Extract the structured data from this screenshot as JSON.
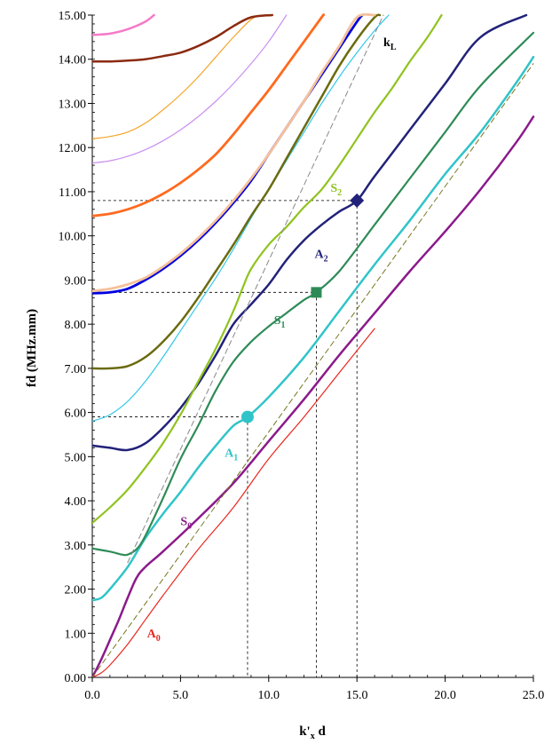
{
  "chart_data": {
    "type": "line",
    "xlabel": "k'x d",
    "xlabel_main": "k'",
    "xlabel_sub": "x",
    "xlabel_tail": " d",
    "ylabel": "fd (MHz.mm)",
    "xlim": [
      0,
      25
    ],
    "ylim": [
      0,
      15
    ],
    "x_ticks": [
      0,
      5,
      10,
      15,
      20,
      25
    ],
    "x_tick_labels": [
      "0.0",
      "5.0",
      "10.0",
      "15.0",
      "20.0",
      "25.0"
    ],
    "y_ticks": [
      0,
      1,
      2,
      3,
      4,
      5,
      6,
      7,
      8,
      9,
      10,
      11,
      12,
      13,
      14,
      15
    ],
    "y_tick_labels": [
      "0.00",
      "1.00",
      "2.00",
      "3.00",
      "4.00",
      "5.00",
      "6.00",
      "7.00",
      "8.00",
      "9.00",
      "10.00",
      "11.00",
      "12.00",
      "13.00",
      "14.00",
      "15.00"
    ],
    "grid": false,
    "series": [
      {
        "name": "A0",
        "color": "#e8281e",
        "width": 1.2,
        "dash": "",
        "points": [
          [
            0,
            0
          ],
          [
            0.5,
            0.1
          ],
          [
            1,
            0.28
          ],
          [
            2,
            0.75
          ],
          [
            3,
            1.3
          ],
          [
            4,
            1.85
          ],
          [
            6,
            2.9
          ],
          [
            8,
            3.85
          ],
          [
            10,
            4.95
          ],
          [
            12,
            5.9
          ],
          [
            14,
            6.9
          ],
          [
            16,
            7.9
          ]
        ]
      },
      {
        "name": "S0",
        "color": "#8b1a8b",
        "width": 2.5,
        "dash": "",
        "points": [
          [
            0,
            0
          ],
          [
            0.5,
            0.4
          ],
          [
            1,
            0.85
          ],
          [
            1.5,
            1.3
          ],
          [
            2,
            1.8
          ],
          [
            2.5,
            2.25
          ],
          [
            3,
            2.5
          ],
          [
            4,
            2.85
          ],
          [
            6,
            3.6
          ],
          [
            8,
            4.4
          ],
          [
            10,
            5.35
          ],
          [
            12,
            6.3
          ],
          [
            14,
            7.3
          ],
          [
            16,
            8.25
          ],
          [
            18,
            9.2
          ],
          [
            20,
            10.1
          ],
          [
            22,
            11.05
          ],
          [
            24,
            12.1
          ],
          [
            25,
            12.7
          ]
        ]
      },
      {
        "name": "A1",
        "color": "#30c4c8",
        "width": 2.5,
        "dash": "",
        "points": [
          [
            0,
            1.75
          ],
          [
            0.5,
            1.8
          ],
          [
            1,
            2.0
          ],
          [
            2,
            2.5
          ],
          [
            3,
            3.15
          ],
          [
            4,
            3.7
          ],
          [
            5,
            4.2
          ],
          [
            6,
            4.75
          ],
          [
            7,
            5.25
          ],
          [
            8,
            5.7
          ],
          [
            8.8,
            5.9
          ],
          [
            10,
            6.35
          ],
          [
            12,
            7.25
          ],
          [
            14,
            8.3
          ],
          [
            16,
            9.35
          ],
          [
            18,
            10.35
          ],
          [
            20,
            11.4
          ],
          [
            22,
            12.35
          ],
          [
            24,
            13.45
          ],
          [
            25,
            14.05
          ]
        ]
      },
      {
        "name": "S1",
        "color": "#2e8b57",
        "width": 2.2,
        "dash": "",
        "points": [
          [
            0,
            2.92
          ],
          [
            1,
            2.85
          ],
          [
            1.7,
            2.78
          ],
          [
            2,
            2.78
          ],
          [
            2.5,
            2.9
          ],
          [
            3,
            3.2
          ],
          [
            4,
            4.05
          ],
          [
            5,
            4.95
          ],
          [
            6,
            5.7
          ],
          [
            7,
            6.5
          ],
          [
            8,
            7.15
          ],
          [
            9,
            7.6
          ],
          [
            10,
            7.95
          ],
          [
            11,
            8.25
          ],
          [
            12,
            8.55
          ],
          [
            12.7,
            8.72
          ],
          [
            14,
            9.2
          ],
          [
            16,
            10.25
          ],
          [
            18,
            11.3
          ],
          [
            20,
            12.35
          ],
          [
            22,
            13.4
          ],
          [
            25,
            14.6
          ]
        ]
      },
      {
        "name": "A2",
        "color": "#22227a",
        "width": 2.5,
        "dash": "",
        "points": [
          [
            0,
            5.25
          ],
          [
            1,
            5.2
          ],
          [
            2,
            5.15
          ],
          [
            3,
            5.3
          ],
          [
            4,
            5.65
          ],
          [
            5,
            6.1
          ],
          [
            6,
            6.65
          ],
          [
            7,
            7.3
          ],
          [
            8,
            8.0
          ],
          [
            9,
            8.45
          ],
          [
            10,
            8.9
          ],
          [
            11,
            9.45
          ],
          [
            12,
            9.9
          ],
          [
            13,
            10.25
          ],
          [
            14,
            10.55
          ],
          [
            15,
            10.8
          ],
          [
            16,
            11.35
          ],
          [
            18,
            12.4
          ],
          [
            20,
            13.45
          ],
          [
            22,
            14.5
          ],
          [
            24.6,
            15
          ]
        ]
      },
      {
        "name": "S2",
        "color": "#8fc31f",
        "width": 2.2,
        "dash": "",
        "points": [
          [
            0,
            3.5
          ],
          [
            1,
            3.85
          ],
          [
            2,
            4.25
          ],
          [
            3,
            4.75
          ],
          [
            4,
            5.3
          ],
          [
            5,
            5.95
          ],
          [
            6,
            6.7
          ],
          [
            7,
            7.45
          ],
          [
            8,
            8.3
          ],
          [
            8.5,
            8.8
          ],
          [
            9,
            9.25
          ],
          [
            10,
            9.8
          ],
          [
            11,
            10.2
          ],
          [
            12,
            10.65
          ],
          [
            13,
            11.05
          ],
          [
            14,
            11.6
          ],
          [
            15,
            12.2
          ],
          [
            16,
            12.8
          ],
          [
            17,
            13.35
          ],
          [
            18,
            13.95
          ],
          [
            19,
            14.5
          ],
          [
            19.8,
            15
          ]
        ]
      },
      {
        "name": "",
        "color": "#33c8e8",
        "width": 1.2,
        "dash": "",
        "points": [
          [
            0,
            5.8
          ],
          [
            1,
            5.95
          ],
          [
            2,
            6.25
          ],
          [
            3,
            6.7
          ],
          [
            4,
            7.25
          ],
          [
            5,
            7.85
          ],
          [
            6,
            8.45
          ],
          [
            7,
            9.05
          ],
          [
            8,
            9.7
          ],
          [
            9,
            10.4
          ],
          [
            10,
            11.05
          ],
          [
            11,
            11.7
          ],
          [
            12,
            12.35
          ],
          [
            13,
            13.0
          ],
          [
            14,
            13.6
          ],
          [
            15,
            14.15
          ],
          [
            16,
            14.65
          ],
          [
            16.8,
            15
          ]
        ]
      },
      {
        "name": "",
        "color": "#6b6b10",
        "width": 2.5,
        "dash": "",
        "points": [
          [
            0,
            7.0
          ],
          [
            1,
            7.0
          ],
          [
            2,
            7.05
          ],
          [
            3,
            7.25
          ],
          [
            4,
            7.6
          ],
          [
            5,
            8.05
          ],
          [
            6,
            8.6
          ],
          [
            7,
            9.2
          ],
          [
            8,
            9.8
          ],
          [
            9,
            10.45
          ],
          [
            10,
            11.05
          ],
          [
            11,
            11.75
          ],
          [
            12,
            12.45
          ],
          [
            13,
            13.15
          ],
          [
            14,
            13.85
          ],
          [
            15,
            14.45
          ],
          [
            16,
            14.95
          ],
          [
            16.3,
            15
          ]
        ]
      },
      {
        "name": "",
        "color": "#0000e0",
        "width": 2.8,
        "dash": "",
        "points": [
          [
            0,
            8.7
          ],
          [
            1,
            8.72
          ],
          [
            2,
            8.8
          ],
          [
            3,
            9.0
          ],
          [
            4,
            9.25
          ],
          [
            5,
            9.55
          ],
          [
            6,
            9.9
          ],
          [
            7,
            10.3
          ],
          [
            8,
            10.75
          ],
          [
            9,
            11.25
          ],
          [
            10,
            11.85
          ],
          [
            11,
            12.45
          ],
          [
            12,
            13.05
          ],
          [
            13,
            13.65
          ],
          [
            14,
            14.25
          ],
          [
            15,
            14.85
          ],
          [
            15.3,
            15
          ]
        ]
      },
      {
        "name": "",
        "color": "#f5c19a",
        "width": 2.8,
        "dash": "",
        "points": [
          [
            0,
            8.75
          ],
          [
            1,
            8.8
          ],
          [
            2,
            8.9
          ],
          [
            3,
            9.05
          ],
          [
            4,
            9.3
          ],
          [
            5,
            9.6
          ],
          [
            6,
            9.95
          ],
          [
            7,
            10.35
          ],
          [
            8,
            10.8
          ],
          [
            9,
            11.3
          ],
          [
            10,
            11.85
          ],
          [
            11,
            12.45
          ],
          [
            12,
            13.05
          ],
          [
            13,
            13.7
          ],
          [
            14,
            14.3
          ],
          [
            15,
            14.95
          ],
          [
            16,
            15
          ]
        ]
      },
      {
        "name": "",
        "color": "#ff6a1e",
        "width": 2.8,
        "dash": "",
        "points": [
          [
            0,
            10.45
          ],
          [
            1,
            10.5
          ],
          [
            2,
            10.6
          ],
          [
            3,
            10.75
          ],
          [
            4,
            10.95
          ],
          [
            5,
            11.2
          ],
          [
            6,
            11.5
          ],
          [
            7,
            11.85
          ],
          [
            8,
            12.3
          ],
          [
            9,
            12.8
          ],
          [
            10,
            13.3
          ],
          [
            11,
            13.85
          ],
          [
            12,
            14.4
          ],
          [
            13,
            14.95
          ],
          [
            13.1,
            15
          ]
        ]
      },
      {
        "name": "",
        "color": "#c98ff0",
        "width": 1.2,
        "dash": "",
        "points": [
          [
            0,
            11.65
          ],
          [
            1,
            11.7
          ],
          [
            2,
            11.8
          ],
          [
            3,
            11.95
          ],
          [
            4,
            12.15
          ],
          [
            5,
            12.4
          ],
          [
            6,
            12.7
          ],
          [
            7,
            13.05
          ],
          [
            8,
            13.45
          ],
          [
            9,
            13.9
          ],
          [
            10,
            14.4
          ],
          [
            11,
            15
          ]
        ]
      },
      {
        "name": "",
        "color": "#f4a428",
        "width": 1.2,
        "dash": "",
        "points": [
          [
            0,
            12.2
          ],
          [
            1,
            12.25
          ],
          [
            2,
            12.35
          ],
          [
            3,
            12.55
          ],
          [
            4,
            12.85
          ],
          [
            5,
            13.2
          ],
          [
            6,
            13.6
          ],
          [
            7,
            14.05
          ],
          [
            8,
            14.5
          ],
          [
            9,
            14.9
          ],
          [
            9.6,
            15
          ]
        ]
      },
      {
        "name": "",
        "color": "#8b2a10",
        "width": 2.5,
        "dash": "",
        "points": [
          [
            0,
            13.95
          ],
          [
            1,
            13.95
          ],
          [
            2,
            13.97
          ],
          [
            3,
            14.0
          ],
          [
            4,
            14.07
          ],
          [
            5,
            14.15
          ],
          [
            6,
            14.3
          ],
          [
            7,
            14.5
          ],
          [
            8,
            14.75
          ],
          [
            9,
            14.95
          ],
          [
            10.2,
            15
          ]
        ]
      },
      {
        "name": "",
        "color": "#f57ac8",
        "width": 2.5,
        "dash": "",
        "points": [
          [
            0,
            14.55
          ],
          [
            1,
            14.58
          ],
          [
            2,
            14.68
          ],
          [
            3,
            14.85
          ],
          [
            3.5,
            15
          ]
        ]
      },
      {
        "name": "",
        "color": "#777722",
        "width": 1.0,
        "dash": "6,4",
        "points": [
          [
            0,
            0
          ],
          [
            25,
            13.9
          ]
        ]
      },
      {
        "name": "",
        "color": "#888888",
        "width": 1.0,
        "dash": "6,4",
        "points": [
          [
            2,
            2.6
          ],
          [
            16.5,
            15
          ]
        ]
      }
    ],
    "reference_lines": [
      {
        "x": 8.8,
        "y": 5.9
      },
      {
        "x": 12.7,
        "y": 8.72
      },
      {
        "x": 15.0,
        "y": 10.8
      }
    ],
    "markers": [
      {
        "shape": "circle",
        "x": 8.8,
        "y": 5.9,
        "color": "#30c4c8"
      },
      {
        "shape": "square",
        "x": 12.7,
        "y": 8.72,
        "color": "#2e8b57"
      },
      {
        "shape": "diamond",
        "x": 15.0,
        "y": 10.8,
        "color": "#22227a"
      }
    ],
    "labels": [
      {
        "main": "A",
        "sub": "0",
        "x": 3.1,
        "y": 0.9,
        "color": "#e8281e"
      },
      {
        "main": "S",
        "sub": "0",
        "x": 5.0,
        "y": 3.45,
        "color": "#8b1a8b"
      },
      {
        "main": "A",
        "sub": "1",
        "x": 7.5,
        "y": 5.0,
        "color": "#30c4c8"
      },
      {
        "main": "S",
        "sub": "1",
        "x": 10.3,
        "y": 8.0,
        "color": "#2e8b57"
      },
      {
        "main": "A",
        "sub": "2",
        "x": 12.6,
        "y": 9.5,
        "color": "#22227a"
      },
      {
        "main": "S",
        "sub": "2",
        "x": 13.5,
        "y": 11.0,
        "color": "#8fc31f"
      },
      {
        "main": "k",
        "sub": "L",
        "x": 16.5,
        "y": 14.3,
        "color": "#000000"
      }
    ]
  }
}
